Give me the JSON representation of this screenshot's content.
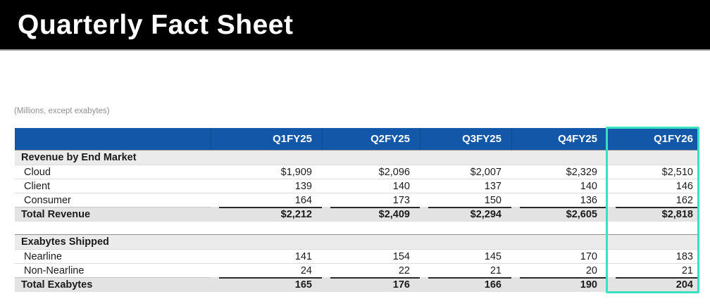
{
  "page": {
    "title": "Quarterly Fact Sheet",
    "units_note": "(Millions, except exabytes)"
  },
  "colors": {
    "header_blue": "#1358a8",
    "highlight_teal": "#38e1c2",
    "title_bar_black": "#000000",
    "section_row_gray": "#ebebeb",
    "total_row_gray": "#e3e3e3"
  },
  "table": {
    "columns": [
      "Q1FY25",
      "Q2FY25",
      "Q3FY25",
      "Q4FY25",
      "Q1FY26"
    ],
    "highlighted_column": "Q1FY26",
    "sections": [
      {
        "heading": "Revenue by End Market",
        "rows": [
          {
            "label": "Cloud",
            "values": [
              "$1,909",
              "$2,096",
              "$2,007",
              "$2,329",
              "$2,510"
            ]
          },
          {
            "label": "Client",
            "values": [
              "139",
              "140",
              "137",
              "140",
              "146"
            ]
          },
          {
            "label": "Consumer",
            "values": [
              "164",
              "173",
              "150",
              "136",
              "162"
            ]
          }
        ],
        "total": {
          "label": "Total Revenue",
          "values": [
            "$2,212",
            "$2,409",
            "$2,294",
            "$2,605",
            "$2,818"
          ]
        }
      },
      {
        "heading": "Exabytes Shipped",
        "rows": [
          {
            "label": "Nearline",
            "values": [
              "141",
              "154",
              "145",
              "170",
              "183"
            ]
          },
          {
            "label": "Non-Nearline",
            "values": [
              "24",
              "22",
              "21",
              "20",
              "21"
            ]
          }
        ],
        "total": {
          "label": "Total Exabytes",
          "values": [
            "165",
            "176",
            "166",
            "190",
            "204"
          ]
        }
      }
    ]
  }
}
